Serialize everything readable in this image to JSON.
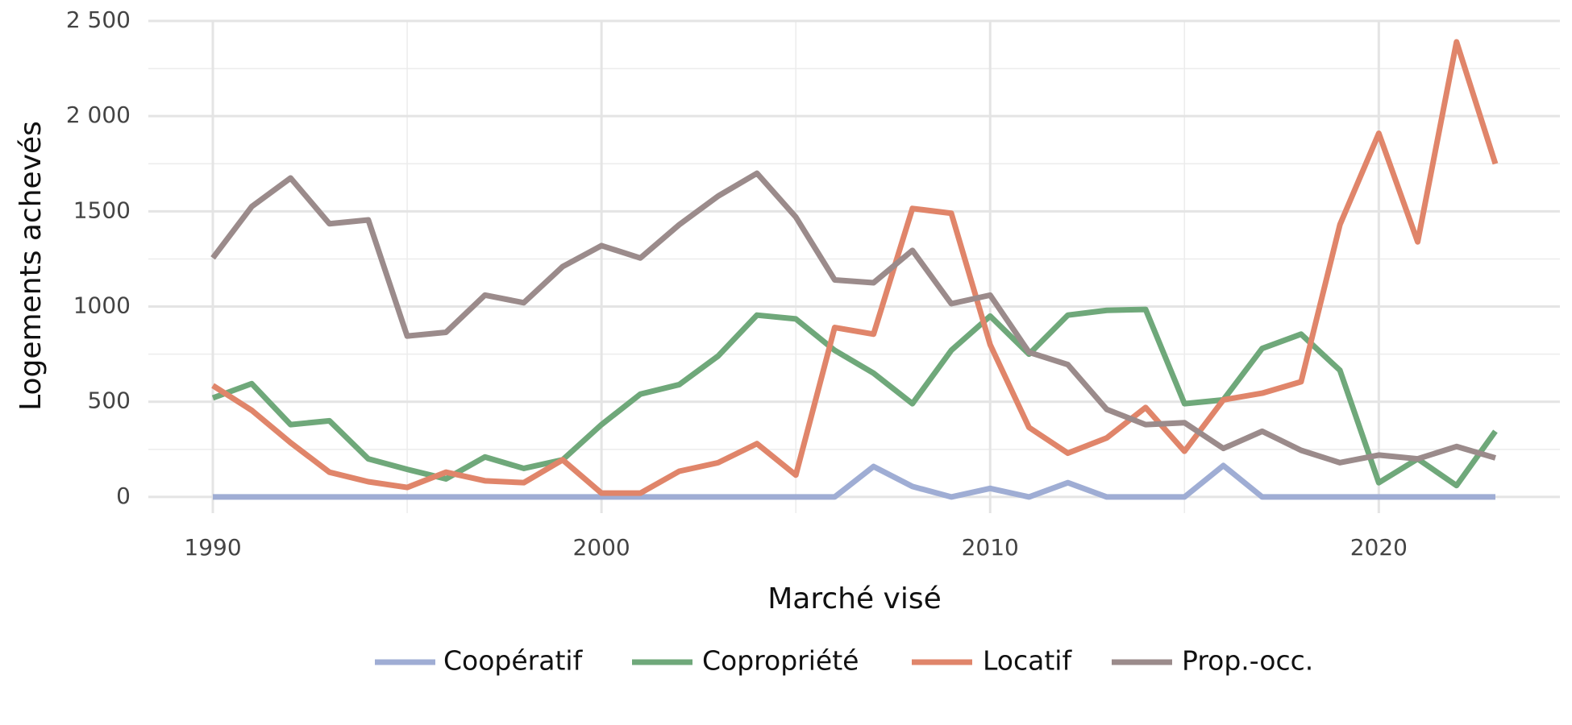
{
  "chart_data": {
    "type": "line",
    "x_label": "Marché visé",
    "y_label": "Logements achevés",
    "x": [
      1990,
      1991,
      1992,
      1993,
      1994,
      1995,
      1996,
      1997,
      1998,
      1999,
      2000,
      2001,
      2002,
      2003,
      2004,
      2005,
      2006,
      2007,
      2008,
      2009,
      2010,
      2011,
      2012,
      2013,
      2014,
      2015,
      2016,
      2017,
      2018,
      2019,
      2020,
      2021,
      2022,
      2023
    ],
    "series": [
      {
        "name": "Coopératif",
        "color": "#9fadd4",
        "values": [
          0,
          0,
          0,
          0,
          0,
          0,
          0,
          0,
          0,
          0,
          0,
          0,
          0,
          0,
          0,
          0,
          0,
          160,
          55,
          0,
          45,
          0,
          75,
          0,
          0,
          0,
          165,
          0,
          0,
          0,
          0,
          0,
          0,
          0
        ]
      },
      {
        "name": "Copropriété",
        "color": "#6fa87a",
        "values": [
          520,
          595,
          380,
          400,
          200,
          145,
          95,
          210,
          150,
          195,
          380,
          540,
          590,
          740,
          955,
          935,
          770,
          650,
          490,
          770,
          950,
          750,
          955,
          980,
          985,
          490,
          510,
          780,
          855,
          665,
          75,
          200,
          60,
          345
        ]
      },
      {
        "name": "Locatif",
        "color": "#e0856a",
        "values": [
          585,
          455,
          285,
          130,
          80,
          50,
          130,
          85,
          75,
          195,
          20,
          20,
          135,
          180,
          280,
          115,
          890,
          855,
          1515,
          1490,
          800,
          365,
          230,
          310,
          470,
          240,
          510,
          545,
          605,
          1430,
          1910,
          1340,
          2390,
          1750
        ]
      },
      {
        "name": "Prop.-occ.",
        "color": "#9b8b8b",
        "values": [
          1255,
          1525,
          1675,
          1435,
          1455,
          845,
          865,
          1060,
          1020,
          1210,
          1320,
          1255,
          1430,
          1580,
          1700,
          1470,
          1140,
          1125,
          1295,
          1015,
          1060,
          760,
          695,
          460,
          380,
          390,
          255,
          345,
          245,
          180,
          220,
          200,
          265,
          205
        ]
      }
    ],
    "xlim": [
      1988.34,
      2024.66
    ],
    "ylim": [
      -85,
      2500
    ],
    "xticks": [
      1990,
      2000,
      2010,
      2020
    ],
    "yticks": [
      0,
      500,
      1000,
      1500,
      {
        "value": 2000,
        "label": "2 000"
      },
      {
        "value": 2500,
        "label": "2 500"
      }
    ],
    "grid": true,
    "legend": "bottom"
  }
}
